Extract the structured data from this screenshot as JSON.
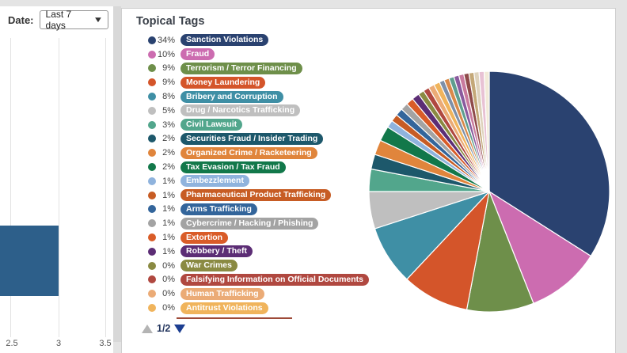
{
  "left_panel": {
    "date_label": "Date:",
    "date_value": "Last 7 days"
  },
  "card": {
    "title": "Topical Tags",
    "pagination": {
      "current": "1/2"
    }
  },
  "chart_data": [
    {
      "type": "pie",
      "title": "Topical Tags",
      "legend_position": "left",
      "start_angle": "12 o'clock, clockwise",
      "slices": [
        {
          "label": "Sanction Violations",
          "pct": 34,
          "draw_pct": 34,
          "color": "#2a4270"
        },
        {
          "label": "Fraud",
          "pct": 10,
          "draw_pct": 10,
          "color": "#cc6cb0"
        },
        {
          "label": "Terrorism / Terror Financing",
          "pct": 9,
          "draw_pct": 9,
          "color": "#6e8f4a"
        },
        {
          "label": "Money Laundering",
          "pct": 9,
          "draw_pct": 9,
          "color": "#d4552a"
        },
        {
          "label": "Bribery and Corruption",
          "pct": 8,
          "draw_pct": 8,
          "color": "#3f8fa5"
        },
        {
          "label": "Drug / Narcotics Trafficking",
          "pct": 5,
          "draw_pct": 5,
          "color": "#bfbfbf"
        },
        {
          "label": "Civil Lawsuit",
          "pct": 3,
          "draw_pct": 3,
          "color": "#52a68c"
        },
        {
          "label": "Securities Fraud / Insider Trading",
          "pct": 2,
          "draw_pct": 2,
          "color": "#1d586b"
        },
        {
          "label": "Organized Crime / Racketeering",
          "pct": 2,
          "draw_pct": 2,
          "color": "#e0853c"
        },
        {
          "label": "Tax Evasion / Tax Fraud",
          "pct": 2,
          "draw_pct": 2,
          "color": "#12784a"
        },
        {
          "label": "Embezzlement",
          "pct": 1,
          "draw_pct": 1,
          "color": "#8fb3dd"
        },
        {
          "label": "Pharmaceutical Product Trafficking",
          "pct": 1,
          "draw_pct": 1,
          "color": "#c75c24"
        },
        {
          "label": "Arms Trafficking",
          "pct": 1,
          "draw_pct": 1,
          "color": "#33659b"
        },
        {
          "label": "Cybercrime / Hacking / Phishing",
          "pct": 1,
          "draw_pct": 1,
          "color": "#a3a3a3"
        },
        {
          "label": "Extortion",
          "pct": 1,
          "draw_pct": 1,
          "color": "#d95c28"
        },
        {
          "label": "Robbery / Theft",
          "pct": 1,
          "draw_pct": 1,
          "color": "#5c2d75"
        },
        {
          "label": "War Crimes",
          "pct": 0,
          "draw_pct": 0.8,
          "color": "#8a8a42"
        },
        {
          "label": "Falsifying Information on Official Documents",
          "pct": 0,
          "draw_pct": 0.8,
          "color": "#b04840"
        },
        {
          "label": "Human Trafficking",
          "pct": 0,
          "draw_pct": 0.8,
          "color": "#ebab76"
        },
        {
          "label": "Antitrust Violations",
          "pct": 0,
          "draw_pct": 0.8,
          "color": "#f0b45c"
        }
      ],
      "extra_slivers": {
        "note": "page 2 of 2 tags, each under 1%",
        "each_draw_pct": 0.68,
        "colors": [
          "#7d8fa8",
          "#d9894a",
          "#5f9e8f",
          "#8a5a9e",
          "#c97a9e",
          "#8f4a4a",
          "#c4a878",
          "#ded2bc",
          "#e8c2d4",
          "#f2ead8"
        ]
      },
      "slice_stroke": "#ffffff"
    },
    {
      "type": "bar",
      "orientation": "horizontal",
      "x_ticks": [
        "2.5",
        "3",
        "3.5"
      ],
      "visible_bar_value": 3,
      "bar_color": "#2d5f8a",
      "note": "bar chart cut off at left edge of viewport; single visible bar ends at gridline 3"
    }
  ]
}
